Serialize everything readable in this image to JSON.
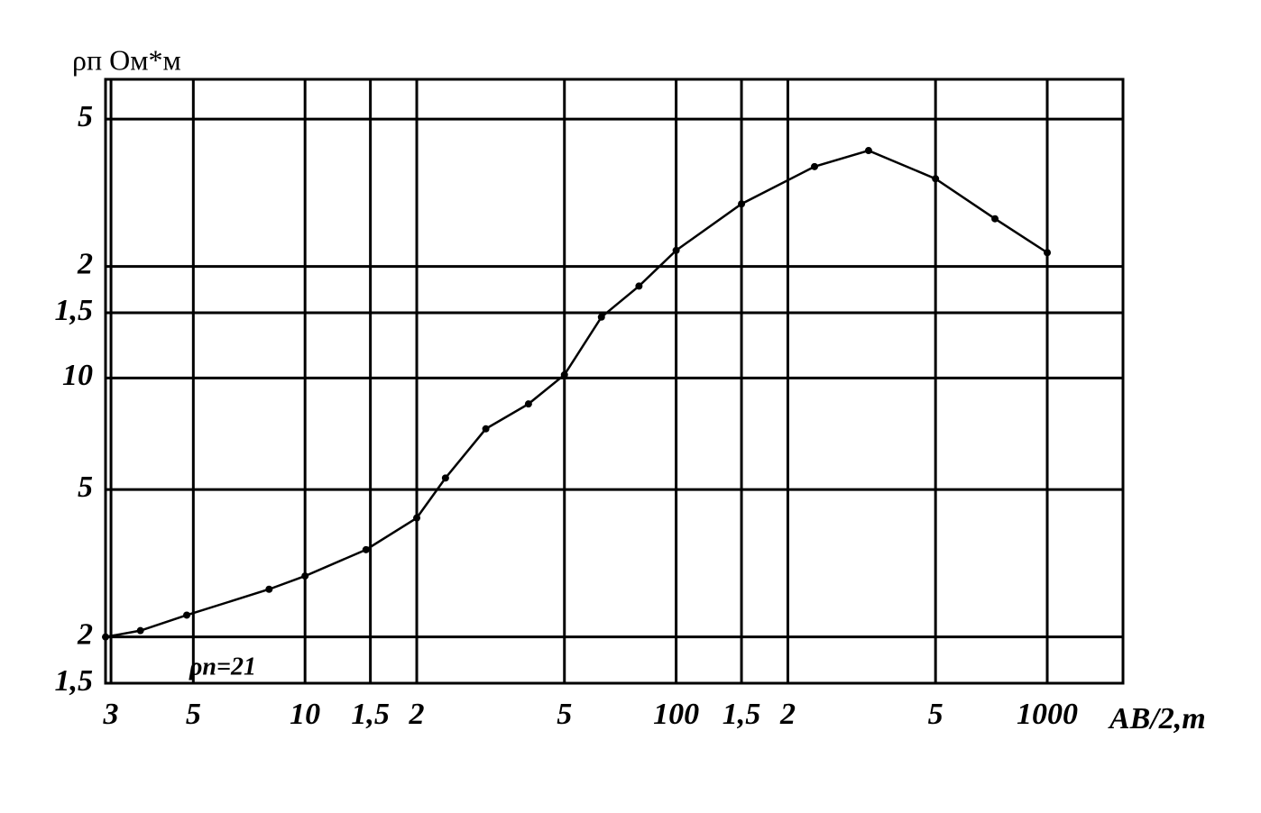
{
  "chart_data": {
    "type": "line",
    "y_label": "ρп Ом*м",
    "x_label": "АВ/2,m",
    "annotation": "ρn=21",
    "log_x": true,
    "log_y": true,
    "grid": true,
    "xlim": [
      2.9,
      1600
    ],
    "xticks": [
      3,
      5,
      10,
      {
        "value": 15,
        "label": "1,5"
      },
      {
        "value": 20,
        "label": "2"
      },
      {
        "value": 50,
        "label": "5"
      },
      100,
      {
        "value": 150,
        "label": "1,5"
      },
      {
        "value": 200,
        "label": "2"
      },
      {
        "value": 500,
        "label": "5"
      },
      1000
    ],
    "ylim": [
      1.5,
      64
    ],
    "yticks": [
      {
        "value": 1.5,
        "label": "1,5"
      },
      2,
      5,
      10,
      {
        "value": 15,
        "label": "1,5"
      },
      {
        "value": 20,
        "label": "2"
      },
      {
        "value": 50,
        "label": "5"
      }
    ],
    "x": [
      2.9,
      3.6,
      4.8,
      8,
      10,
      14.6,
      20,
      23.9,
      30.7,
      40,
      50,
      62.9,
      79.4,
      100,
      150,
      236,
      330,
      500,
      723,
      1000
    ],
    "series": [
      {
        "color": "#000000",
        "values": [
          2.0,
          2.08,
          2.29,
          2.69,
          2.92,
          3.44,
          4.19,
          5.37,
          7.29,
          8.51,
          10.2,
          14.6,
          17.7,
          22.1,
          29.5,
          37.2,
          41.1,
          34.5,
          26.9,
          21.8
        ]
      }
    ]
  }
}
